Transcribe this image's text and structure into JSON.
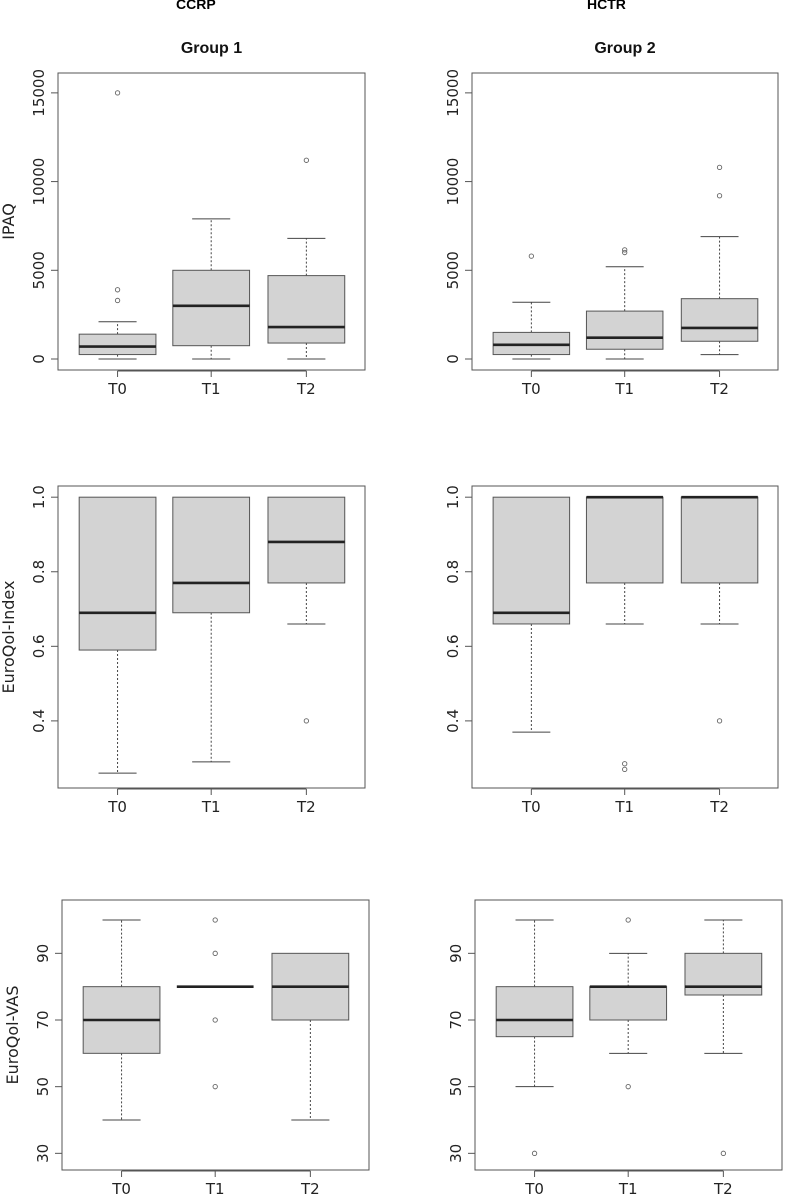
{
  "column_titles": {
    "left": "CCRP",
    "right": "HCTR"
  },
  "colors": {
    "box_fill": "#d3d3d3",
    "frame": "#555555",
    "median": "#222222",
    "whisker": "#444444"
  },
  "chart_data": [
    {
      "type": "boxplot",
      "title": "Group 1",
      "ylabel": "IPAQ",
      "categories": [
        "T0",
        "T1",
        "T2"
      ],
      "ylim": [
        0,
        15500
      ],
      "yticks": [
        0,
        5000,
        10000,
        15000
      ],
      "yticklabels": [
        "0",
        "5000",
        "10000",
        "15000"
      ],
      "boxes": [
        {
          "whislo": 0,
          "q1": 250,
          "med": 700,
          "q3": 1400,
          "whishi": 2100,
          "fliers": [
            3300,
            3900,
            15000
          ]
        },
        {
          "whislo": 0,
          "q1": 750,
          "med": 3000,
          "q3": 5000,
          "whishi": 7900,
          "fliers": []
        },
        {
          "whislo": 0,
          "q1": 900,
          "med": 1800,
          "q3": 4700,
          "whishi": 6800,
          "fliers": [
            11200
          ]
        }
      ]
    },
    {
      "type": "boxplot",
      "title": "Group 2",
      "ylabel": "",
      "categories": [
        "T0",
        "T1",
        "T2"
      ],
      "ylim": [
        0,
        15500
      ],
      "yticks": [
        0,
        5000,
        10000,
        15000
      ],
      "yticklabels": [
        "0",
        "5000",
        "10000",
        "15000"
      ],
      "boxes": [
        {
          "whislo": 0,
          "q1": 250,
          "med": 800,
          "q3": 1500,
          "whishi": 3200,
          "fliers": [
            5800
          ]
        },
        {
          "whislo": 0,
          "q1": 550,
          "med": 1200,
          "q3": 2700,
          "whishi": 5200,
          "fliers": [
            6000,
            6150
          ]
        },
        {
          "whislo": 250,
          "q1": 1000,
          "med": 1750,
          "q3": 3400,
          "whishi": 6900,
          "fliers": [
            9200,
            10800
          ]
        }
      ]
    },
    {
      "type": "boxplot",
      "title": "",
      "ylabel": "EuroQol-Index",
      "categories": [
        "T0",
        "T1",
        "T2"
      ],
      "ylim": [
        0.25,
        1.0
      ],
      "yticks": [
        0.4,
        0.6,
        0.8,
        1.0
      ],
      "yticklabels": [
        "0.4",
        "0.6",
        "0.8",
        "1.0"
      ],
      "boxes": [
        {
          "whislo": 0.26,
          "q1": 0.59,
          "med": 0.69,
          "q3": 1.0,
          "whishi": 1.0,
          "fliers": []
        },
        {
          "whislo": 0.29,
          "q1": 0.69,
          "med": 0.77,
          "q3": 1.0,
          "whishi": 1.0,
          "fliers": []
        },
        {
          "whislo": 0.66,
          "q1": 0.77,
          "med": 0.88,
          "q3": 1.0,
          "whishi": 1.0,
          "fliers": [
            0.4
          ]
        }
      ]
    },
    {
      "type": "boxplot",
      "title": "",
      "ylabel": "",
      "categories": [
        "T0",
        "T1",
        "T2"
      ],
      "ylim": [
        0.25,
        1.0
      ],
      "yticks": [
        0.4,
        0.6,
        0.8,
        1.0
      ],
      "yticklabels": [
        "0.4",
        "0.6",
        "0.8",
        "1.0"
      ],
      "boxes": [
        {
          "whislo": 0.37,
          "q1": 0.66,
          "med": 0.69,
          "q3": 1.0,
          "whishi": 1.0,
          "fliers": []
        },
        {
          "whislo": 0.66,
          "q1": 0.77,
          "med": 1.0,
          "q3": 1.0,
          "whishi": 1.0,
          "fliers": [
            0.27,
            0.285
          ]
        },
        {
          "whislo": 0.66,
          "q1": 0.77,
          "med": 1.0,
          "q3": 1.0,
          "whishi": 1.0,
          "fliers": [
            0.4
          ]
        }
      ]
    },
    {
      "type": "boxplot",
      "title": "",
      "ylabel": "EuroQol-VAS",
      "categories": [
        "T0",
        "T1",
        "T2"
      ],
      "ylim": [
        28,
        103
      ],
      "yticks": [
        30,
        50,
        70,
        90
      ],
      "yticklabels": [
        "30",
        "50",
        "70",
        "90"
      ],
      "boxes": [
        {
          "whislo": 40,
          "q1": 60,
          "med": 70,
          "q3": 80,
          "whishi": 100,
          "fliers": []
        },
        {
          "whislo": 80,
          "q1": 80,
          "med": 80,
          "q3": 80,
          "whishi": 80,
          "fliers": [
            50,
            70,
            90,
            100
          ]
        },
        {
          "whislo": 40,
          "q1": 70,
          "med": 80,
          "q3": 90,
          "whishi": 90,
          "fliers": []
        }
      ]
    },
    {
      "type": "boxplot",
      "title": "",
      "ylabel": "",
      "categories": [
        "T0",
        "T1",
        "T2"
      ],
      "ylim": [
        28,
        103
      ],
      "yticks": [
        30,
        50,
        70,
        90
      ],
      "yticklabels": [
        "30",
        "50",
        "70",
        "90"
      ],
      "boxes": [
        {
          "whislo": 50,
          "q1": 65,
          "med": 70,
          "q3": 80,
          "whishi": 100,
          "fliers": [
            30
          ]
        },
        {
          "whislo": 60,
          "q1": 70,
          "med": 80,
          "q3": 80,
          "whishi": 90,
          "fliers": [
            50,
            100
          ]
        },
        {
          "whislo": 60,
          "q1": 77.5,
          "med": 80,
          "q3": 90,
          "whishi": 100,
          "fliers": [
            30
          ]
        }
      ]
    }
  ]
}
